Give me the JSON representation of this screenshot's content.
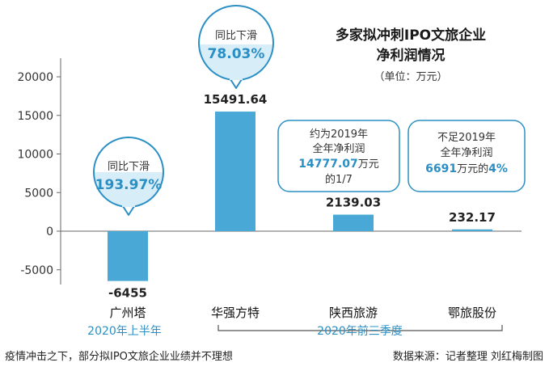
{
  "chart_data": {
    "type": "bar",
    "title_line1": "多家拟冲刺IPO文旅企业",
    "title_line2": "净利润情况",
    "unit": "（单位：万元）",
    "categories": [
      "广州塔",
      "华强方特",
      "陕西旅游",
      "鄂旅股份"
    ],
    "values": [
      -6455,
      15491.64,
      2139.03,
      232.17
    ],
    "value_labels": [
      "-6455",
      "15491.64",
      "2139.03",
      "232.17"
    ],
    "yticks": [
      20000,
      15000,
      10000,
      5000,
      0,
      -5000
    ],
    "ytick_labels": [
      "20000",
      "15000",
      "10000",
      "5000",
      "0",
      "-5000"
    ],
    "ylim": [
      -6500,
      22500
    ],
    "bar_color": "#4aa8d6",
    "accent_color": "#2a8fc4",
    "periods": [
      "2020年上半年",
      "2020年前三季度"
    ],
    "bubbles": [
      {
        "top": "同比下滑",
        "pct": "193.97%"
      },
      {
        "top": "同比下滑",
        "pct": "78.03%"
      }
    ],
    "callouts": [
      {
        "line1": "约为2019年",
        "line2": "全年净利润",
        "line3_bold": "14777.07",
        "line3_rest": "万元",
        "line4": "的1/7"
      },
      {
        "line1": "不足2019年",
        "line2": "全年净利润",
        "line3_bold": "6691",
        "line3_mid": "万元的",
        "line3_bold2": "4%"
      }
    ],
    "footnote_left": "疫情冲击之下，部分拟IPO文旅企业业绩并不理想",
    "footnote_right": "数据来源：记者整理  刘红梅制图"
  }
}
